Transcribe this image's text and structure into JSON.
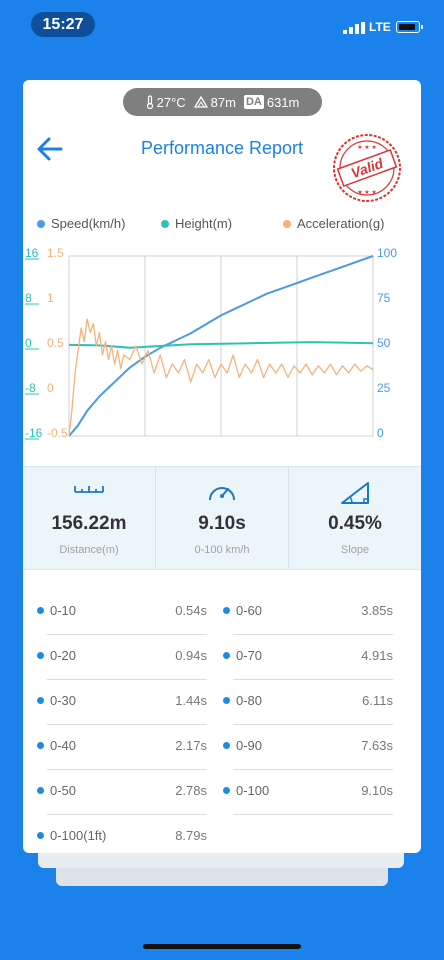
{
  "status_bar": {
    "time": "15:27",
    "network": "LTE"
  },
  "environment": {
    "temperature": "27°C",
    "altitude": "87m",
    "da_label": "DA",
    "density_altitude": "631m"
  },
  "header": {
    "title": "Performance Report",
    "stamp_text": "Valid"
  },
  "legend": [
    {
      "label": "Speed(km/h)",
      "color": "#4a9be0"
    },
    {
      "label": "Height(m)",
      "color": "#30c0b8"
    },
    {
      "label": "Acceleration(g)",
      "color": "#f5b27a"
    }
  ],
  "chart_data": {
    "type": "line",
    "axes": {
      "height_left": {
        "ticks": [
          "16",
          "8",
          "0",
          "-8",
          "-16"
        ],
        "color": "#30c0b8"
      },
      "accel_left": {
        "ticks": [
          "1.5",
          "1",
          "0.5",
          "0",
          "-0.5"
        ],
        "color": "#f5b27a"
      },
      "speed_right": {
        "ticks": [
          "100",
          "75",
          "50",
          "25",
          "0"
        ],
        "color": "#4a9be0"
      }
    },
    "ylim_speed": [
      0,
      100
    ],
    "ylim_height": [
      -16,
      16
    ],
    "ylim_accel": [
      -0.5,
      1.5
    ],
    "series": [
      {
        "name": "Speed(km/h)",
        "color": "#4a9be0",
        "points": [
          [
            0,
            0
          ],
          [
            0.03,
            6
          ],
          [
            0.06,
            14
          ],
          [
            0.1,
            22
          ],
          [
            0.15,
            30
          ],
          [
            0.2,
            38
          ],
          [
            0.25,
            44
          ],
          [
            0.3,
            49
          ],
          [
            0.35,
            53
          ],
          [
            0.4,
            57
          ],
          [
            0.45,
            62
          ],
          [
            0.5,
            67
          ],
          [
            0.55,
            71
          ],
          [
            0.6,
            75
          ],
          [
            0.65,
            79
          ],
          [
            0.7,
            82
          ],
          [
            0.75,
            85
          ],
          [
            0.8,
            88
          ],
          [
            0.85,
            91
          ],
          [
            0.9,
            94
          ],
          [
            0.95,
            97
          ],
          [
            1,
            100
          ]
        ]
      },
      {
        "name": "Height(m)",
        "color": "#30c0b8",
        "points": [
          [
            0,
            0.2
          ],
          [
            0.1,
            0.1
          ],
          [
            0.2,
            -0.3
          ],
          [
            0.3,
            0
          ],
          [
            0.4,
            0.3
          ],
          [
            0.5,
            0.4
          ],
          [
            0.6,
            0.5
          ],
          [
            0.7,
            0.6
          ],
          [
            0.8,
            0.7
          ],
          [
            0.9,
            0.6
          ],
          [
            1,
            0.5
          ]
        ]
      },
      {
        "name": "Acceleration(g)",
        "color": "#f5b27a",
        "points": [
          [
            0,
            -0.5
          ],
          [
            0.01,
            -0.2
          ],
          [
            0.02,
            0.2
          ],
          [
            0.03,
            0.45
          ],
          [
            0.04,
            0.7
          ],
          [
            0.05,
            0.55
          ],
          [
            0.06,
            0.8
          ],
          [
            0.07,
            0.65
          ],
          [
            0.08,
            0.75
          ],
          [
            0.09,
            0.5
          ],
          [
            0.1,
            0.65
          ],
          [
            0.11,
            0.4
          ],
          [
            0.12,
            0.55
          ],
          [
            0.13,
            0.35
          ],
          [
            0.14,
            0.5
          ],
          [
            0.15,
            0.3
          ],
          [
            0.16,
            0.45
          ],
          [
            0.17,
            0.25
          ],
          [
            0.18,
            0.4
          ],
          [
            0.2,
            0.35
          ],
          [
            0.22,
            0.5
          ],
          [
            0.24,
            0.3
          ],
          [
            0.26,
            0.45
          ],
          [
            0.28,
            0.2
          ],
          [
            0.3,
            0.4
          ],
          [
            0.32,
            0.15
          ],
          [
            0.34,
            0.3
          ],
          [
            0.36,
            0.2
          ],
          [
            0.38,
            0.35
          ],
          [
            0.4,
            0.1
          ],
          [
            0.42,
            0.3
          ],
          [
            0.44,
            0.2
          ],
          [
            0.46,
            0.35
          ],
          [
            0.48,
            0.15
          ],
          [
            0.5,
            0.3
          ],
          [
            0.52,
            0.2
          ],
          [
            0.54,
            0.4
          ],
          [
            0.56,
            0.15
          ],
          [
            0.58,
            0.3
          ],
          [
            0.6,
            0.2
          ],
          [
            0.62,
            0.35
          ],
          [
            0.64,
            0.15
          ],
          [
            0.66,
            0.3
          ],
          [
            0.68,
            0.2
          ],
          [
            0.7,
            0.3
          ],
          [
            0.72,
            0.15
          ],
          [
            0.74,
            0.28
          ],
          [
            0.76,
            0.2
          ],
          [
            0.78,
            0.3
          ],
          [
            0.8,
            0.18
          ],
          [
            0.82,
            0.28
          ],
          [
            0.84,
            0.2
          ],
          [
            0.86,
            0.3
          ],
          [
            0.88,
            0.18
          ],
          [
            0.9,
            0.28
          ],
          [
            0.92,
            0.2
          ],
          [
            0.94,
            0.3
          ],
          [
            0.96,
            0.22
          ],
          [
            0.98,
            0.28
          ],
          [
            1,
            0.24
          ]
        ]
      }
    ]
  },
  "stats": [
    {
      "value": "156.22m",
      "label": "Distance(m)",
      "icon": "ruler-icon"
    },
    {
      "value": "9.10s",
      "label": "0-100 km/h",
      "icon": "speedometer-icon"
    },
    {
      "value": "0.45%",
      "label": "Slope",
      "icon": "slope-icon"
    }
  ],
  "times": [
    {
      "label": "0-10",
      "value": "0.54s"
    },
    {
      "label": "0-20",
      "value": "0.94s"
    },
    {
      "label": "0-30",
      "value": "1.44s"
    },
    {
      "label": "0-40",
      "value": "2.17s"
    },
    {
      "label": "0-50",
      "value": "2.78s"
    },
    {
      "label": "0-60",
      "value": "3.85s"
    },
    {
      "label": "0-70",
      "value": "4.91s"
    },
    {
      "label": "0-80",
      "value": "6.11s"
    },
    {
      "label": "0-90",
      "value": "7.63s"
    },
    {
      "label": "0-100",
      "value": "9.10s"
    },
    {
      "label": "0-100(1ft)",
      "value": "8.79s"
    }
  ]
}
